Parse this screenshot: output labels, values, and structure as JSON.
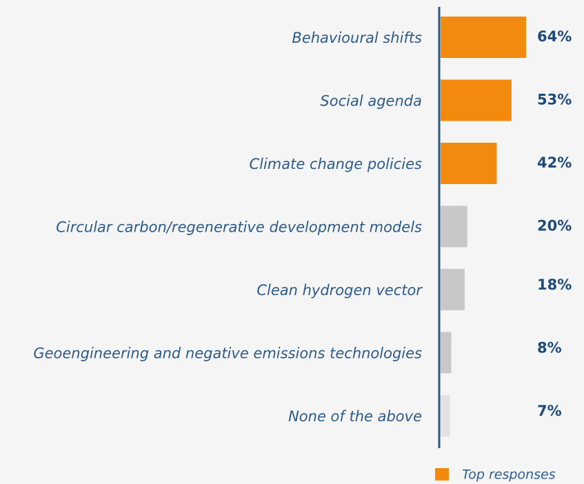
{
  "chart_data": {
    "type": "bar",
    "orientation": "horizontal",
    "categories": [
      "Behavioural shifts",
      "Social agenda",
      "Climate change policies",
      "Circular carbon/regenerative development models",
      "Clean hydrogen vector",
      "Geoengineering and negative emissions technologies",
      "None of the above"
    ],
    "values": [
      64,
      53,
      42,
      20,
      18,
      8,
      7
    ],
    "value_labels": [
      "64%",
      "53%",
      "42%",
      "20%",
      "18%",
      "8%",
      "7%"
    ],
    "colors": [
      "#f28a10",
      "#f28a10",
      "#f28a10",
      "#c8c8c8",
      "#c8c8c8",
      "#c8c8c8",
      "#e2e2e2"
    ],
    "legend": [
      {
        "name": "Top responses",
        "color": "#f28a10"
      }
    ]
  }
}
